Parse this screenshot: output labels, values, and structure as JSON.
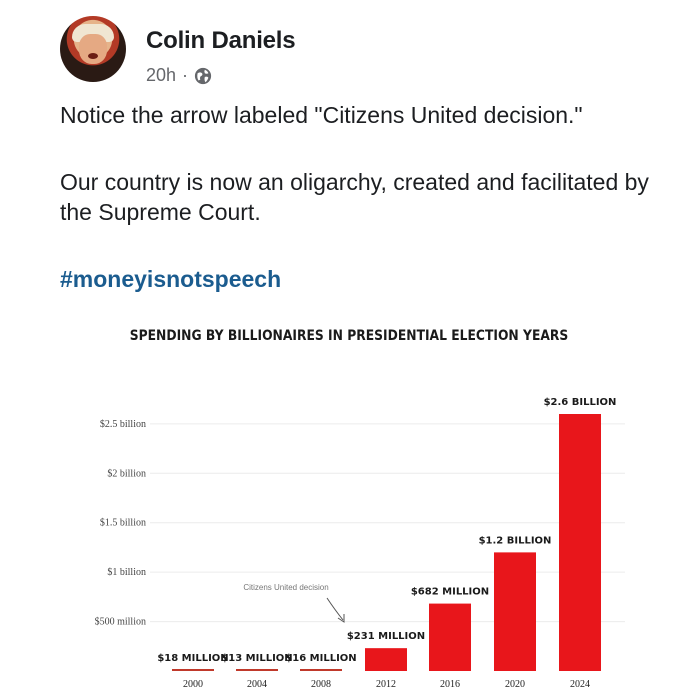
{
  "post": {
    "author": "Colin Daniels",
    "time": "20h",
    "separator": "·",
    "privacy_icon": "globe-icon",
    "paragraph1": "Notice the arrow labeled \"Citizens United decision.\"",
    "paragraph2": "Our country is now an oligarchy, created and facilitated by the Supreme Court.",
    "hashtag": "#moneyisnotspeech"
  },
  "colors": {
    "bar": "#e8161b",
    "hashtag": "#1b5c8f",
    "small_bar_line": "#c0392b"
  },
  "chart_data": {
    "type": "bar",
    "title": "SPENDING BY BILLIONAIRES IN PRESIDENTIAL ELECTION YEARS",
    "categories": [
      "2000",
      "2004",
      "2008",
      "2012",
      "2016",
      "2020",
      "2024"
    ],
    "values": [
      0.018,
      0.013,
      0.016,
      0.231,
      0.682,
      1.2,
      2.6
    ],
    "value_unit": "billion USD",
    "data_labels": [
      "$18 MILLION",
      "$13 MILLION",
      "$16 MILLION",
      "$231 MILLION",
      "$682 MILLION",
      "$1.2 BILLION",
      "$2.6 BILLION"
    ],
    "y_ticks": [
      {
        "value": 0.5,
        "label": "$500 million"
      },
      {
        "value": 1.0,
        "label": "$1 billion"
      },
      {
        "value": 1.5,
        "label": "$1.5 billion"
      },
      {
        "value": 2.0,
        "label": "$2 billion"
      },
      {
        "value": 2.5,
        "label": "$2.5 billion"
      }
    ],
    "ylim": [
      0,
      2.6
    ],
    "grid": true,
    "annotation": {
      "text": "Citizens United decision",
      "category": "2008"
    }
  }
}
